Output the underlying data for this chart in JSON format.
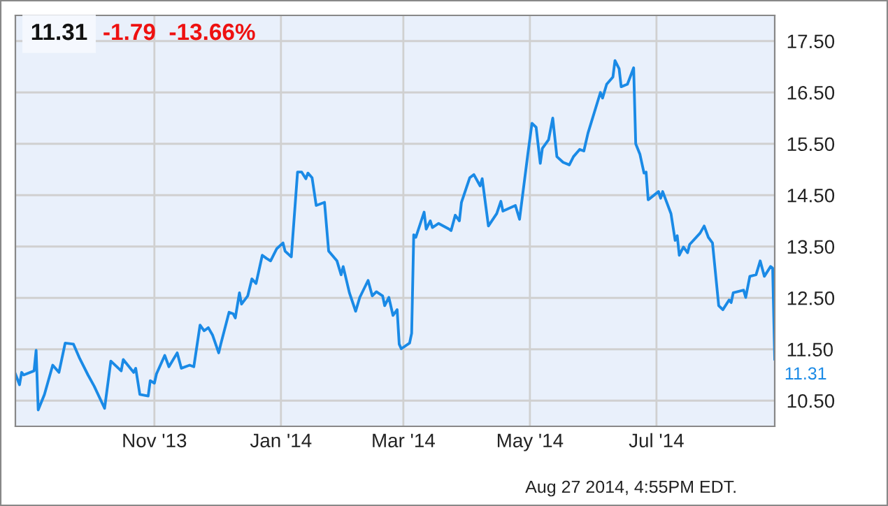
{
  "chart_data": {
    "type": "line",
    "title": "11.31",
    "subtitle": "-1.79  -13.66%",
    "annotations": [
      {
        "text": "11.31",
        "x": "2014-08-27",
        "y": 11.31
      },
      "Aug 27 2014, 4:55PM EDT."
    ],
    "x": [
      "2013-08-26",
      "2013-08-28",
      "2013-08-29",
      "2013-08-30",
      "2013-09-04",
      "2013-09-05",
      "2013-09-06",
      "2013-09-09",
      "2013-09-13",
      "2013-09-16",
      "2013-09-19",
      "2013-09-23",
      "2013-09-26",
      "2013-09-30",
      "2013-10-03",
      "2013-10-08",
      "2013-10-11",
      "2013-10-16",
      "2013-10-17",
      "2013-10-22",
      "2013-10-23",
      "2013-10-25",
      "2013-10-29",
      "2013-10-30",
      "2013-11-01",
      "2013-11-02",
      "2013-11-06",
      "2013-11-08",
      "2013-11-12",
      "2013-11-14",
      "2013-11-18",
      "2013-11-20",
      "2013-11-23",
      "2013-11-25",
      "2013-11-27",
      "2013-11-29",
      "2013-12-02",
      "2013-12-03",
      "2013-12-07",
      "2013-12-09",
      "2013-12-10",
      "2013-12-12",
      "2013-12-13",
      "2013-12-16",
      "2013-12-18",
      "2013-12-20",
      "2013-12-23",
      "2013-12-25",
      "2013-12-27",
      "2013-12-30",
      "2014-01-02",
      "2014-01-03",
      "2014-01-06",
      "2014-01-09",
      "2014-01-11",
      "2014-01-13",
      "2014-01-14",
      "2014-01-16",
      "2014-01-18",
      "2014-01-22",
      "2014-01-24",
      "2014-01-28",
      "2014-01-30",
      "2014-01-31",
      "2014-02-03",
      "2014-02-06",
      "2014-02-08",
      "2014-02-12",
      "2014-02-14",
      "2014-02-16",
      "2014-02-19",
      "2014-02-20",
      "2014-02-22",
      "2014-02-24",
      "2014-02-26",
      "2014-02-27",
      "2014-02-28",
      "2014-03-04",
      "2014-03-05",
      "2014-03-06",
      "2014-03-07",
      "2014-03-11",
      "2014-03-12",
      "2014-03-14",
      "2014-03-15",
      "2014-03-18",
      "2014-03-23",
      "2014-03-24",
      "2014-03-26",
      "2014-03-28",
      "2014-03-29",
      "2014-04-02",
      "2014-04-04",
      "2014-04-07",
      "2014-04-08",
      "2014-04-11",
      "2014-04-15",
      "2014-04-17",
      "2014-04-18",
      "2014-04-24",
      "2014-04-26",
      "2014-04-30",
      "2014-05-02",
      "2014-05-04",
      "2014-05-06",
      "2014-05-07",
      "2014-05-10",
      "2014-05-12",
      "2014-05-14",
      "2014-05-17",
      "2014-05-20",
      "2014-05-22",
      "2014-05-25",
      "2014-05-27",
      "2014-05-29",
      "2014-06-04",
      "2014-06-05",
      "2014-06-07",
      "2014-06-10",
      "2014-06-11",
      "2014-06-13",
      "2014-06-14",
      "2014-06-17",
      "2014-06-20",
      "2014-06-21",
      "2014-06-23",
      "2014-06-25",
      "2014-06-26",
      "2014-06-27",
      "2014-07-02",
      "2014-07-03",
      "2014-07-04",
      "2014-07-08",
      "2014-07-10",
      "2014-07-11",
      "2014-07-12",
      "2014-07-14",
      "2014-07-16",
      "2014-07-17",
      "2014-07-22",
      "2014-07-24",
      "2014-07-26",
      "2014-07-28",
      "2014-07-31",
      "2014-08-02",
      "2014-08-05",
      "2014-08-06",
      "2014-08-07",
      "2014-08-12",
      "2014-08-13",
      "2014-08-15",
      "2014-08-18",
      "2014-08-20",
      "2014-08-22",
      "2014-08-25",
      "2014-08-26",
      "2014-08-27"
    ],
    "series": [
      {
        "color": "#1a8ae6",
        "values": [
          11.02,
          10.81,
          11.05,
          11.0,
          11.08,
          11.48,
          10.32,
          10.62,
          11.19,
          11.05,
          11.62,
          11.6,
          11.32,
          11.0,
          10.78,
          10.35,
          11.27,
          11.08,
          11.3,
          11.05,
          11.13,
          10.62,
          10.59,
          10.89,
          10.84,
          11.02,
          11.38,
          11.16,
          11.43,
          11.13,
          11.19,
          11.16,
          11.97,
          11.86,
          11.92,
          11.78,
          11.43,
          11.6,
          12.22,
          12.19,
          12.11,
          12.6,
          12.38,
          12.54,
          12.87,
          12.78,
          13.33,
          13.27,
          13.22,
          13.46,
          13.57,
          13.41,
          13.3,
          14.95,
          14.95,
          14.82,
          14.93,
          14.84,
          14.3,
          14.36,
          13.41,
          13.22,
          12.95,
          13.11,
          12.6,
          12.24,
          12.51,
          12.84,
          12.54,
          12.62,
          12.54,
          12.35,
          12.51,
          12.16,
          12.27,
          11.6,
          11.51,
          11.62,
          11.81,
          13.73,
          13.68,
          14.17,
          13.84,
          14.0,
          13.87,
          13.95,
          13.84,
          13.81,
          14.11,
          14.0,
          14.36,
          14.84,
          14.9,
          14.68,
          14.82,
          13.9,
          14.14,
          14.38,
          14.19,
          14.3,
          14.03,
          15.3,
          15.9,
          15.82,
          15.12,
          15.41,
          15.58,
          16.0,
          15.25,
          15.14,
          15.09,
          15.25,
          15.39,
          15.36,
          15.71,
          16.5,
          16.39,
          16.66,
          16.8,
          17.12,
          16.96,
          16.61,
          16.66,
          16.98,
          15.5,
          15.3,
          14.93,
          14.95,
          14.41,
          14.57,
          14.44,
          14.57,
          14.14,
          13.62,
          13.71,
          13.33,
          13.49,
          13.38,
          13.54,
          13.76,
          13.9,
          13.68,
          13.57,
          12.35,
          12.27,
          12.46,
          12.41,
          12.6,
          12.65,
          12.51,
          12.92,
          12.95,
          13.22,
          12.92,
          13.11,
          13.08,
          11.31
        ]
      }
    ],
    "xlim": [
      "2013-08-26",
      "2014-08-27"
    ],
    "xticks": [
      {
        "value": "2013-11-01",
        "label": "Nov '13"
      },
      {
        "value": "2014-01-01",
        "label": "Jan '14"
      },
      {
        "value": "2014-03-01",
        "label": "Mar '14"
      },
      {
        "value": "2014-05-01",
        "label": "May '14"
      },
      {
        "value": "2014-07-01",
        "label": "Jul '14"
      }
    ],
    "ylim": [
      10.0,
      18.0
    ],
    "yticks": [
      {
        "value": 10.5,
        "label": "10.50"
      },
      {
        "value": 11.5,
        "label": "11.50"
      },
      {
        "value": 12.5,
        "label": "12.50"
      },
      {
        "value": 13.5,
        "label": "13.50"
      },
      {
        "value": 14.5,
        "label": "14.50"
      },
      {
        "value": 15.5,
        "label": "15.50"
      },
      {
        "value": 16.5,
        "label": "16.50"
      },
      {
        "value": 17.5,
        "label": "17.50"
      }
    ],
    "grid": true,
    "legend": false,
    "marker": "none",
    "line_style": "solid"
  }
}
